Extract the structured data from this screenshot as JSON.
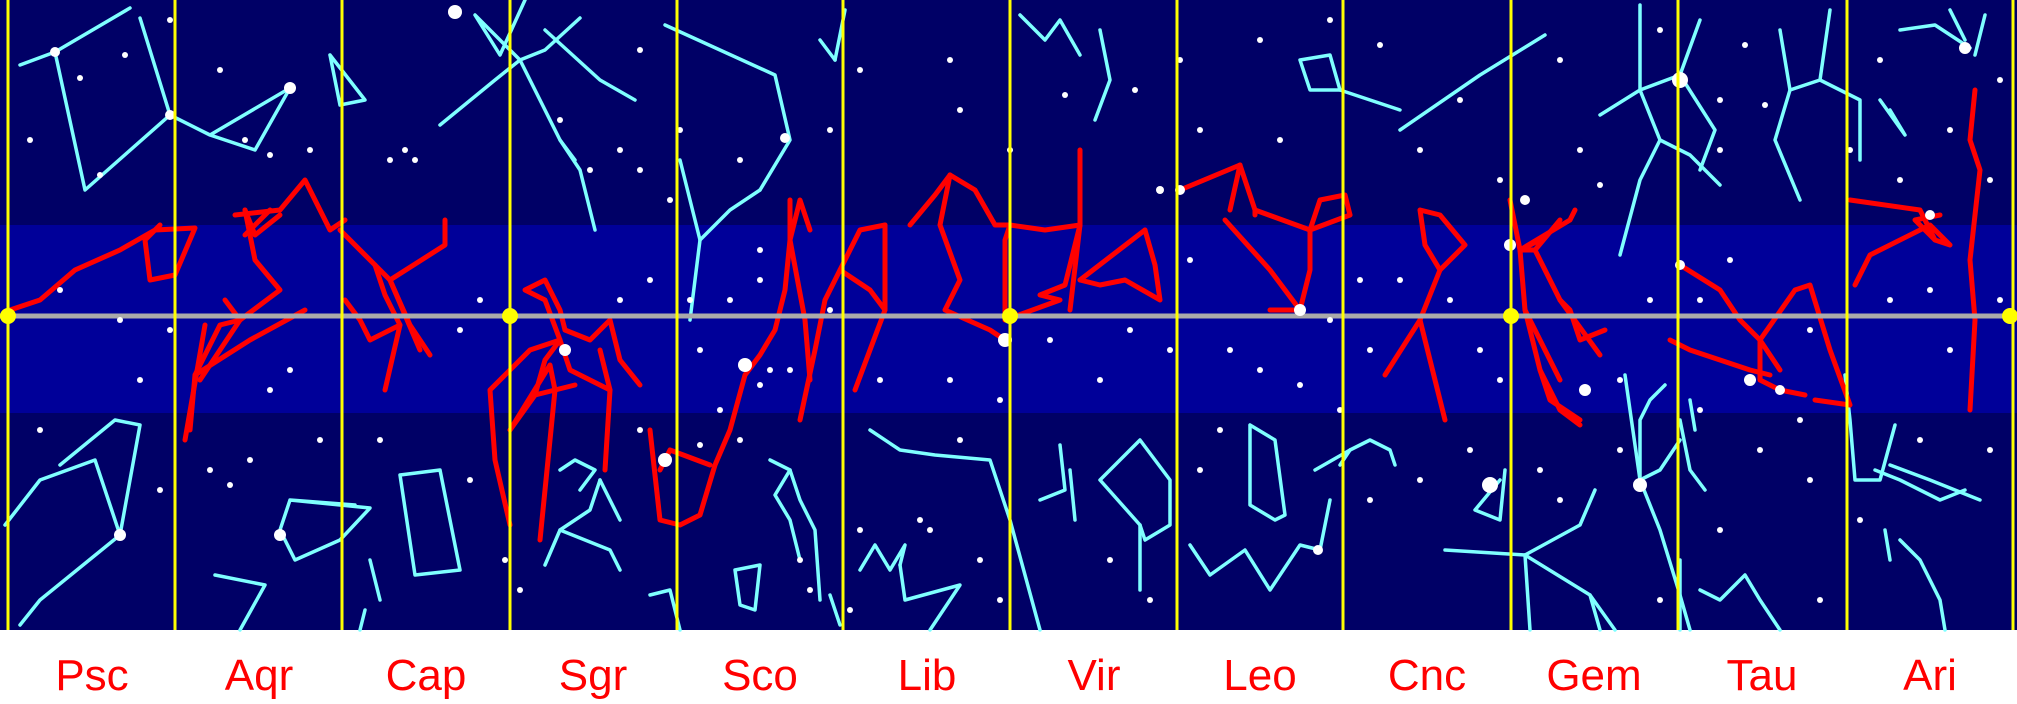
{
  "colors": {
    "sky_outer": "#000066",
    "ecliptic_band": "#000099",
    "ecliptic_line": "#aaaaaa",
    "zodiac_lines": "#ff0000",
    "other_lines": "#7fffff",
    "stars": "#ffffff",
    "boundaries": "#ffff00",
    "labels": "#ff0000"
  },
  "zodiac_labels": [
    "Psc",
    "Aqr",
    "Cap",
    "Sgr",
    "Sco",
    "Lib",
    "Vir",
    "Leo",
    "Cnc",
    "Gem",
    "Tau",
    "Ari"
  ]
}
